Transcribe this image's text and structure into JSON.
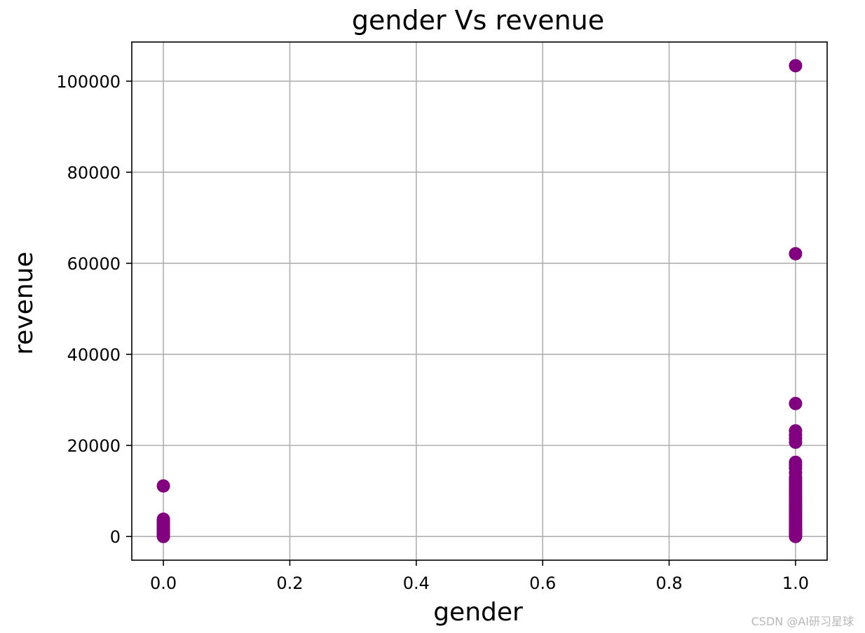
{
  "watermark": "CSDN @AI研习星球",
  "chart_data": {
    "type": "scatter",
    "title": "gender Vs revenue",
    "xlabel": "gender",
    "ylabel": "revenue",
    "xlim": [
      -0.05,
      1.05
    ],
    "ylim": [
      -5200,
      108600
    ],
    "xticks": [
      0.0,
      0.2,
      0.4,
      0.6,
      0.8,
      1.0
    ],
    "xtick_labels": [
      "0.0",
      "0.2",
      "0.4",
      "0.6",
      "0.8",
      "1.0"
    ],
    "yticks": [
      0,
      20000,
      40000,
      60000,
      80000,
      100000
    ],
    "ytick_labels": [
      "0",
      "20000",
      "40000",
      "60000",
      "80000",
      "100000"
    ],
    "grid": true,
    "marker_color": "#800080",
    "series": [
      {
        "points": [
          [
            0,
            0
          ],
          [
            0,
            150
          ],
          [
            0,
            300
          ],
          [
            0,
            450
          ],
          [
            0,
            600
          ],
          [
            0,
            800
          ],
          [
            0,
            1000
          ],
          [
            0,
            1200
          ],
          [
            0,
            1400
          ],
          [
            0,
            1600
          ],
          [
            0,
            1800
          ],
          [
            0,
            2000
          ],
          [
            0,
            2200
          ],
          [
            0,
            2400
          ],
          [
            0,
            2600
          ],
          [
            0,
            2800
          ],
          [
            0,
            3000
          ],
          [
            0,
            3200
          ],
          [
            0,
            3500
          ],
          [
            0,
            3800
          ],
          [
            0,
            11100
          ],
          [
            1,
            0
          ],
          [
            1,
            200
          ],
          [
            1,
            400
          ],
          [
            1,
            600
          ],
          [
            1,
            800
          ],
          [
            1,
            1000
          ],
          [
            1,
            1200
          ],
          [
            1,
            1400
          ],
          [
            1,
            1600
          ],
          [
            1,
            1800
          ],
          [
            1,
            2000
          ],
          [
            1,
            2300
          ],
          [
            1,
            2600
          ],
          [
            1,
            2900
          ],
          [
            1,
            3200
          ],
          [
            1,
            3500
          ],
          [
            1,
            3800
          ],
          [
            1,
            4100
          ],
          [
            1,
            4400
          ],
          [
            1,
            4700
          ],
          [
            1,
            5000
          ],
          [
            1,
            5300
          ],
          [
            1,
            5600
          ],
          [
            1,
            5900
          ],
          [
            1,
            6200
          ],
          [
            1,
            6500
          ],
          [
            1,
            6800
          ],
          [
            1,
            7100
          ],
          [
            1,
            7400
          ],
          [
            1,
            7700
          ],
          [
            1,
            8000
          ],
          [
            1,
            8400
          ],
          [
            1,
            8800
          ],
          [
            1,
            9200
          ],
          [
            1,
            9600
          ],
          [
            1,
            10000
          ],
          [
            1,
            10500
          ],
          [
            1,
            11000
          ],
          [
            1,
            11500
          ],
          [
            1,
            12000
          ],
          [
            1,
            12500
          ],
          [
            1,
            13000
          ],
          [
            1,
            14000
          ],
          [
            1,
            15000
          ],
          [
            1,
            15700
          ],
          [
            1,
            16300
          ],
          [
            1,
            20700
          ],
          [
            1,
            21500
          ],
          [
            1,
            22300
          ],
          [
            1,
            23200
          ],
          [
            1,
            29200
          ],
          [
            1,
            62100
          ],
          [
            1,
            103400
          ]
        ]
      }
    ]
  }
}
